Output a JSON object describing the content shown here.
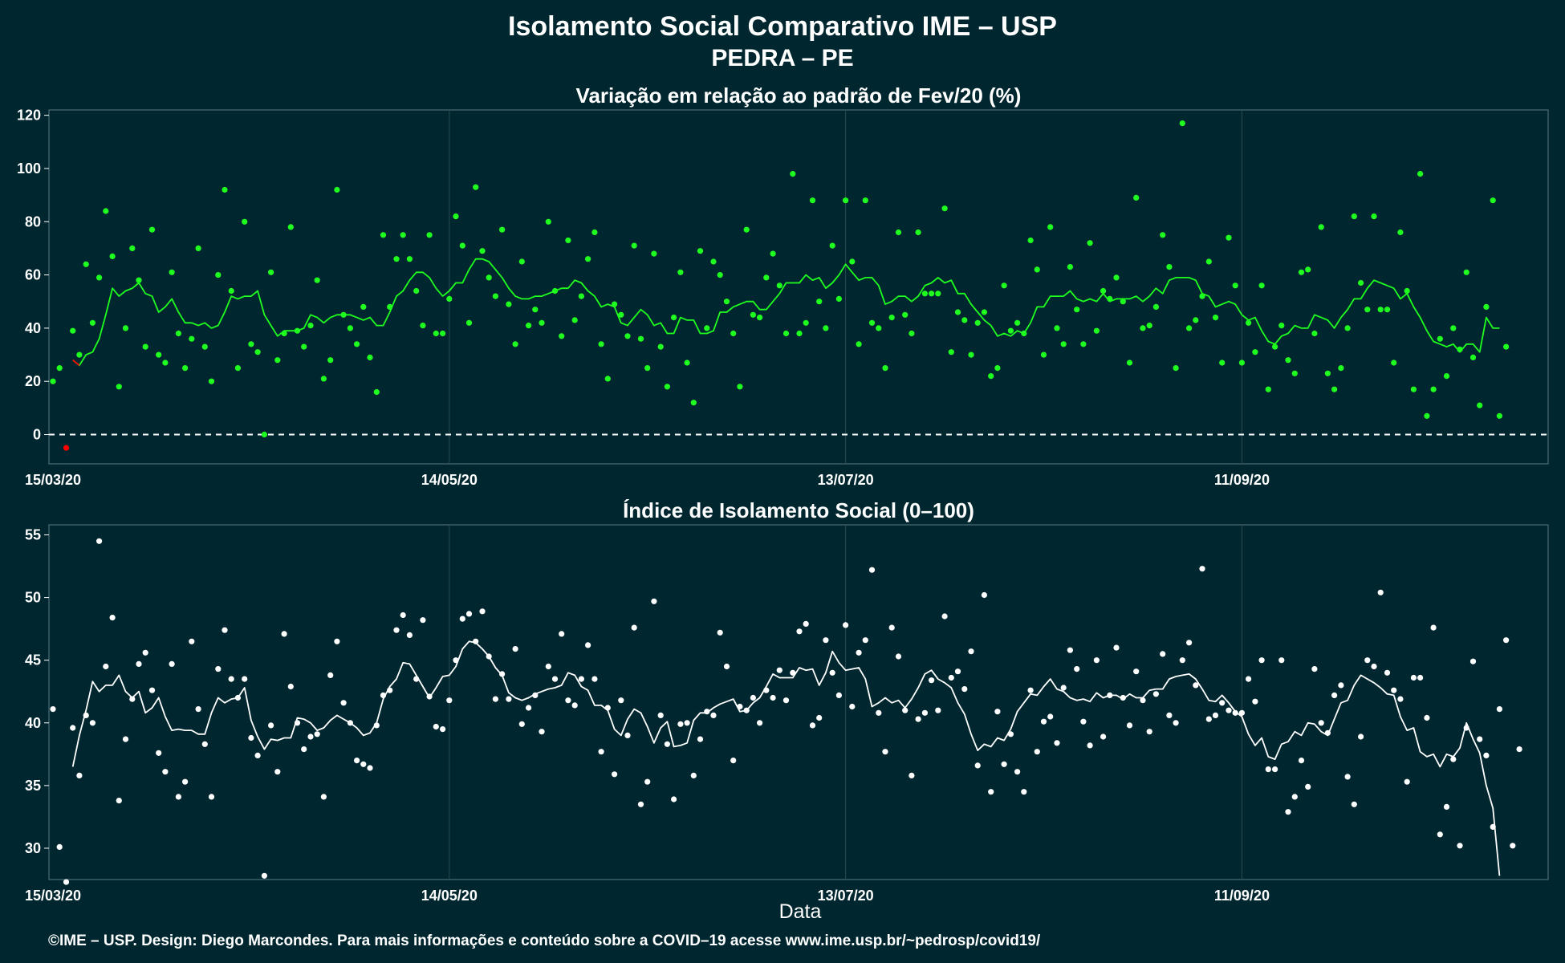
{
  "title_line1": "Isolamento Social Comparativo IME – USP",
  "title_line2": "PEDRA – PE",
  "xlabel": "Data",
  "footer": "©IME – USP. Design: Diego Marcondes. Para mais informações e conteúdo sobre a COVID–19 acesse www.ime.usp.br/~pedrosp/covid19/",
  "colors": {
    "background": "#00272f",
    "top_series": "#1fff1f",
    "top_negative": "#ff0000",
    "bottom_series": "#ffffff",
    "grid": "#2c4950"
  },
  "chart_data": [
    {
      "type": "scatter",
      "title": "Variação em relação ao padrão de Fev/20 (%)",
      "xlabel": "",
      "ylabel": "",
      "x_start": "15/03/20",
      "x_end": "2020-10-27",
      "xticks": [
        "15/03/20",
        "14/05/20",
        "13/07/20",
        "11/09/20"
      ],
      "yticks": [
        0,
        20,
        40,
        60,
        80,
        100,
        120
      ],
      "ylim": [
        -11,
        122
      ],
      "reference_line": 0,
      "grid": true,
      "legend": "none",
      "series": [
        {
          "kind": "points",
          "values": [
            20,
            25,
            -5,
            39,
            30,
            64,
            42,
            59,
            84,
            67,
            18,
            40,
            70,
            58,
            33,
            77,
            30,
            27,
            61,
            38,
            25,
            36,
            70,
            33,
            20,
            60,
            92,
            54,
            25,
            80,
            34,
            31,
            0,
            61,
            28,
            38,
            78,
            39,
            33,
            41,
            58,
            21,
            28,
            92,
            45,
            40,
            34,
            48,
            29,
            16,
            75,
            48,
            66,
            75,
            66,
            54,
            41,
            75,
            38,
            38,
            51,
            82,
            71,
            42,
            93,
            69,
            59,
            52,
            77,
            49,
            34,
            65,
            41,
            47,
            42,
            80,
            54,
            37,
            73,
            43,
            52,
            66,
            76,
            34,
            21,
            49,
            45,
            37,
            71,
            36,
            25,
            68,
            33,
            18,
            44,
            61,
            27,
            12,
            69,
            40,
            65,
            60,
            50,
            38,
            18,
            77,
            45,
            44,
            59,
            68,
            56,
            38,
            98,
            38,
            42,
            88,
            50,
            40,
            71,
            51,
            88,
            65,
            34,
            88,
            42,
            40,
            25,
            44,
            76,
            45,
            38,
            76,
            53,
            53,
            53,
            85,
            31,
            46,
            43,
            30,
            42,
            46,
            22,
            25,
            56,
            39,
            42,
            38,
            73,
            62,
            30,
            78,
            40,
            34,
            63,
            47,
            34,
            72,
            39,
            54,
            51,
            59,
            50,
            27,
            89,
            40,
            41,
            48,
            75,
            63,
            25,
            117,
            40,
            43,
            52,
            65,
            44,
            27,
            74,
            56,
            27,
            42,
            31,
            56,
            17,
            33,
            41,
            28,
            23,
            61,
            62,
            38,
            78,
            23,
            17,
            25,
            40,
            82,
            57,
            47,
            82,
            47,
            47,
            27,
            76,
            54,
            17,
            98,
            7,
            17,
            36,
            22,
            40,
            32,
            61,
            29,
            11,
            48,
            88,
            7,
            33
          ],
          "note": "daily values"
        },
        {
          "kind": "moving-average",
          "values": [
            null,
            null,
            null,
            28,
            26,
            30,
            31,
            36,
            45,
            55,
            52,
            54,
            55,
            57,
            53,
            52,
            46,
            48,
            51,
            46,
            42,
            42,
            41,
            42,
            40,
            41,
            46,
            52,
            51,
            52,
            52,
            54,
            45,
            41,
            37,
            39,
            39,
            39,
            40,
            45,
            44,
            42,
            44,
            45,
            45,
            45,
            44,
            43,
            44,
            41,
            41,
            46,
            52,
            54,
            58,
            61,
            61,
            59,
            55,
            52,
            54,
            57,
            57,
            62,
            66,
            66,
            65,
            62,
            59,
            55,
            52,
            51,
            51,
            52,
            52,
            53,
            54,
            55,
            55,
            58,
            57,
            54,
            52,
            48,
            49,
            48,
            42,
            41,
            44,
            47,
            45,
            41,
            42,
            38,
            38,
            44,
            43,
            43,
            38,
            38,
            39,
            46,
            46,
            48,
            49,
            50,
            50,
            47,
            47,
            50,
            53,
            57,
            57,
            57,
            60,
            58,
            59,
            55,
            57,
            60,
            64,
            61,
            58,
            59,
            59,
            56,
            49,
            50,
            52,
            52,
            50,
            52,
            56,
            57,
            59,
            57,
            58,
            53,
            53,
            49,
            46,
            43,
            41,
            37,
            38,
            37,
            39,
            38,
            42,
            48,
            48,
            52,
            52,
            52,
            54,
            51,
            50,
            51,
            50,
            53,
            50,
            51,
            51,
            51,
            52,
            50,
            52,
            55,
            53,
            58,
            59,
            59,
            59,
            58,
            53,
            52,
            48,
            49,
            50,
            49,
            45,
            43,
            44,
            39,
            35,
            34,
            37,
            38,
            41,
            40,
            40,
            45,
            44,
            43,
            40,
            44,
            47,
            51,
            51,
            55,
            58,
            57,
            56,
            55,
            51,
            53,
            48,
            44,
            39,
            35,
            34,
            33,
            34,
            31,
            34,
            34,
            31,
            44,
            40,
            40
          ],
          "note": "7-day moving average"
        }
      ]
    },
    {
      "type": "scatter",
      "title": "Índice de Isolamento Social (0–100)",
      "xlabel": "Data",
      "ylabel": "",
      "x_start": "15/03/20",
      "x_end": "2020-10-27",
      "xticks": [
        "15/03/20",
        "14/05/20",
        "13/07/20",
        "11/09/20"
      ],
      "yticks": [
        30,
        35,
        40,
        45,
        50,
        55
      ],
      "ylim": [
        27.5,
        55.8
      ],
      "grid": true,
      "legend": "none",
      "series": [
        {
          "kind": "points",
          "values": [
            41.1,
            30.1,
            27.3,
            39.6,
            35.8,
            40.6,
            40.0,
            54.5,
            44.5,
            48.4,
            33.8,
            38.7,
            41.9,
            44.7,
            45.6,
            42.6,
            37.6,
            36.1,
            44.7,
            34.1,
            35.3,
            46.5,
            41.1,
            38.3,
            34.1,
            44.3,
            47.4,
            43.5,
            42.0,
            43.5,
            38.8,
            37.4,
            27.8,
            39.8,
            36.1,
            47.1,
            42.9,
            40.0,
            37.9,
            38.9,
            39.1,
            34.1,
            43.8,
            46.5,
            41.6,
            40.0,
            37.0,
            36.7,
            36.4,
            39.8,
            42.2,
            42.6,
            47.4,
            48.6,
            47.0,
            43.5,
            48.2,
            42.1,
            39.7,
            39.5,
            41.8,
            45.0,
            48.3,
            48.7,
            46.5,
            48.9,
            45.3,
            41.9,
            43.9,
            41.9,
            45.9,
            39.9,
            41.2,
            42.2,
            39.3,
            44.5,
            43.5,
            47.1,
            41.8,
            41.4,
            43.5,
            46.2,
            43.5,
            37.7,
            41.2,
            35.9,
            41.8,
            39.0,
            47.6,
            33.5,
            35.3,
            49.7,
            40.6,
            38.3,
            33.9,
            39.9,
            40.0,
            35.8,
            38.7,
            40.9,
            40.6,
            47.2,
            44.5,
            37.0,
            41.3,
            41.0,
            42.0,
            40.0,
            42.6,
            42.0,
            44.2,
            41.8,
            44.0,
            47.3,
            47.9,
            39.8,
            40.4,
            46.6,
            44.0,
            42.2,
            47.8,
            41.3,
            45.6,
            46.6,
            52.2,
            40.8,
            37.7,
            47.6,
            45.3,
            41.0,
            35.8,
            40.3,
            40.8,
            43.4,
            41.0,
            48.5,
            43.6,
            44.1,
            42.7,
            45.7,
            36.6,
            50.2,
            34.5,
            40.9,
            36.7,
            39.1,
            36.1,
            34.5,
            42.6,
            37.7,
            40.1,
            40.5,
            38.4,
            42.8,
            45.8,
            44.3,
            40.1,
            38.2,
            45.0,
            38.9,
            42.2,
            46.0,
            42.0,
            39.8,
            44.1,
            41.8,
            39.3,
            42.3,
            45.5,
            40.6,
            40.0,
            45.0,
            46.4,
            43.0,
            52.3,
            40.3,
            40.6,
            41.6,
            41.0,
            40.8,
            40.8,
            43.5,
            41.7,
            45.0,
            36.3,
            36.3,
            45.0,
            32.9,
            34.1,
            37.0,
            34.9,
            44.3,
            40.0,
            39.2,
            42.2,
            43.0,
            35.7,
            33.5,
            38.9,
            45.0,
            44.5,
            50.4,
            44.0,
            42.6,
            41.9,
            35.3,
            43.6,
            43.6,
            40.4,
            47.6,
            31.1,
            33.3,
            37.1,
            30.2,
            39.6,
            44.9,
            38.7,
            37.4,
            31.7,
            41.1,
            46.6,
            30.2,
            37.9
          ],
          "note": "daily values"
        },
        {
          "kind": "moving-average",
          "values": [
            null,
            null,
            null,
            36.5,
            39.0,
            41.0,
            43.3,
            42.5,
            43.0,
            43.0,
            43.8,
            42.5,
            42.0,
            42.5,
            40.8,
            41.2,
            42.0,
            40.5,
            39.4,
            39.5,
            39.4,
            39.4,
            39.1,
            39.1,
            40.8,
            42.0,
            41.6,
            41.9,
            42.0,
            42.8,
            40.2,
            38.9,
            37.9,
            38.7,
            38.6,
            38.8,
            38.8,
            40.4,
            40.3,
            40.0,
            39.4,
            39.6,
            40.2,
            40.6,
            40.3,
            40.0,
            39.6,
            39.0,
            39.2,
            40.0,
            41.9,
            42.9,
            43.5,
            44.8,
            44.7,
            43.8,
            42.9,
            42.0,
            42.8,
            43.7,
            43.8,
            44.5,
            45.9,
            46.5,
            46.4,
            45.9,
            45.3,
            44.4,
            43.8,
            42.4,
            42.0,
            41.8,
            42.0,
            42.3,
            42.5,
            42.7,
            42.8,
            43.0,
            44.0,
            43.8,
            42.9,
            42.6,
            41.4,
            41.4,
            41.0,
            39.5,
            39.0,
            40.3,
            41.1,
            40.8,
            39.7,
            38.4,
            39.6,
            40.1,
            38.1,
            38.2,
            38.4,
            40.2,
            40.8,
            40.8,
            41.2,
            41.5,
            41.7,
            41.9,
            40.9,
            41.0,
            41.6,
            42.0,
            42.9,
            43.9,
            43.6,
            43.6,
            43.6,
            44.4,
            44.2,
            44.3,
            43.0,
            44.0,
            45.7,
            44.8,
            44.2,
            44.3,
            44.4,
            43.5,
            41.3,
            41.6,
            42.0,
            41.6,
            41.8,
            41.2,
            41.9,
            42.8,
            43.9,
            44.2,
            43.5,
            43.2,
            42.8,
            41.6,
            40.7,
            39.1,
            37.8,
            38.3,
            38.1,
            38.8,
            38.6,
            39.5,
            40.9,
            41.6,
            42.3,
            42.2,
            42.9,
            43.5,
            42.7,
            42.5,
            42.0,
            41.8,
            41.9,
            41.7,
            42.4,
            42.0,
            42.2,
            42.2,
            41.9,
            42.3,
            42.0,
            42.0,
            42.6,
            42.7,
            42.7,
            43.5,
            43.7,
            43.8,
            43.9,
            43.5,
            42.7,
            41.8,
            41.7,
            42.2,
            41.6,
            40.9,
            40.5,
            39.1,
            38.2,
            38.8,
            37.3,
            37.1,
            38.3,
            38.5,
            39.3,
            39.0,
            40.0,
            39.9,
            39.3,
            39.0,
            40.3,
            41.6,
            41.8,
            43.0,
            43.8,
            43.5,
            43.2,
            42.8,
            42.3,
            42.2,
            40.5,
            39.4,
            39.6,
            37.7,
            37.3,
            37.5,
            36.5,
            37.5,
            37.3,
            38.0,
            40.0,
            38.7,
            37.6,
            35.0,
            33.2,
            27.8
          ],
          "note": "7-day moving average"
        }
      ]
    }
  ]
}
